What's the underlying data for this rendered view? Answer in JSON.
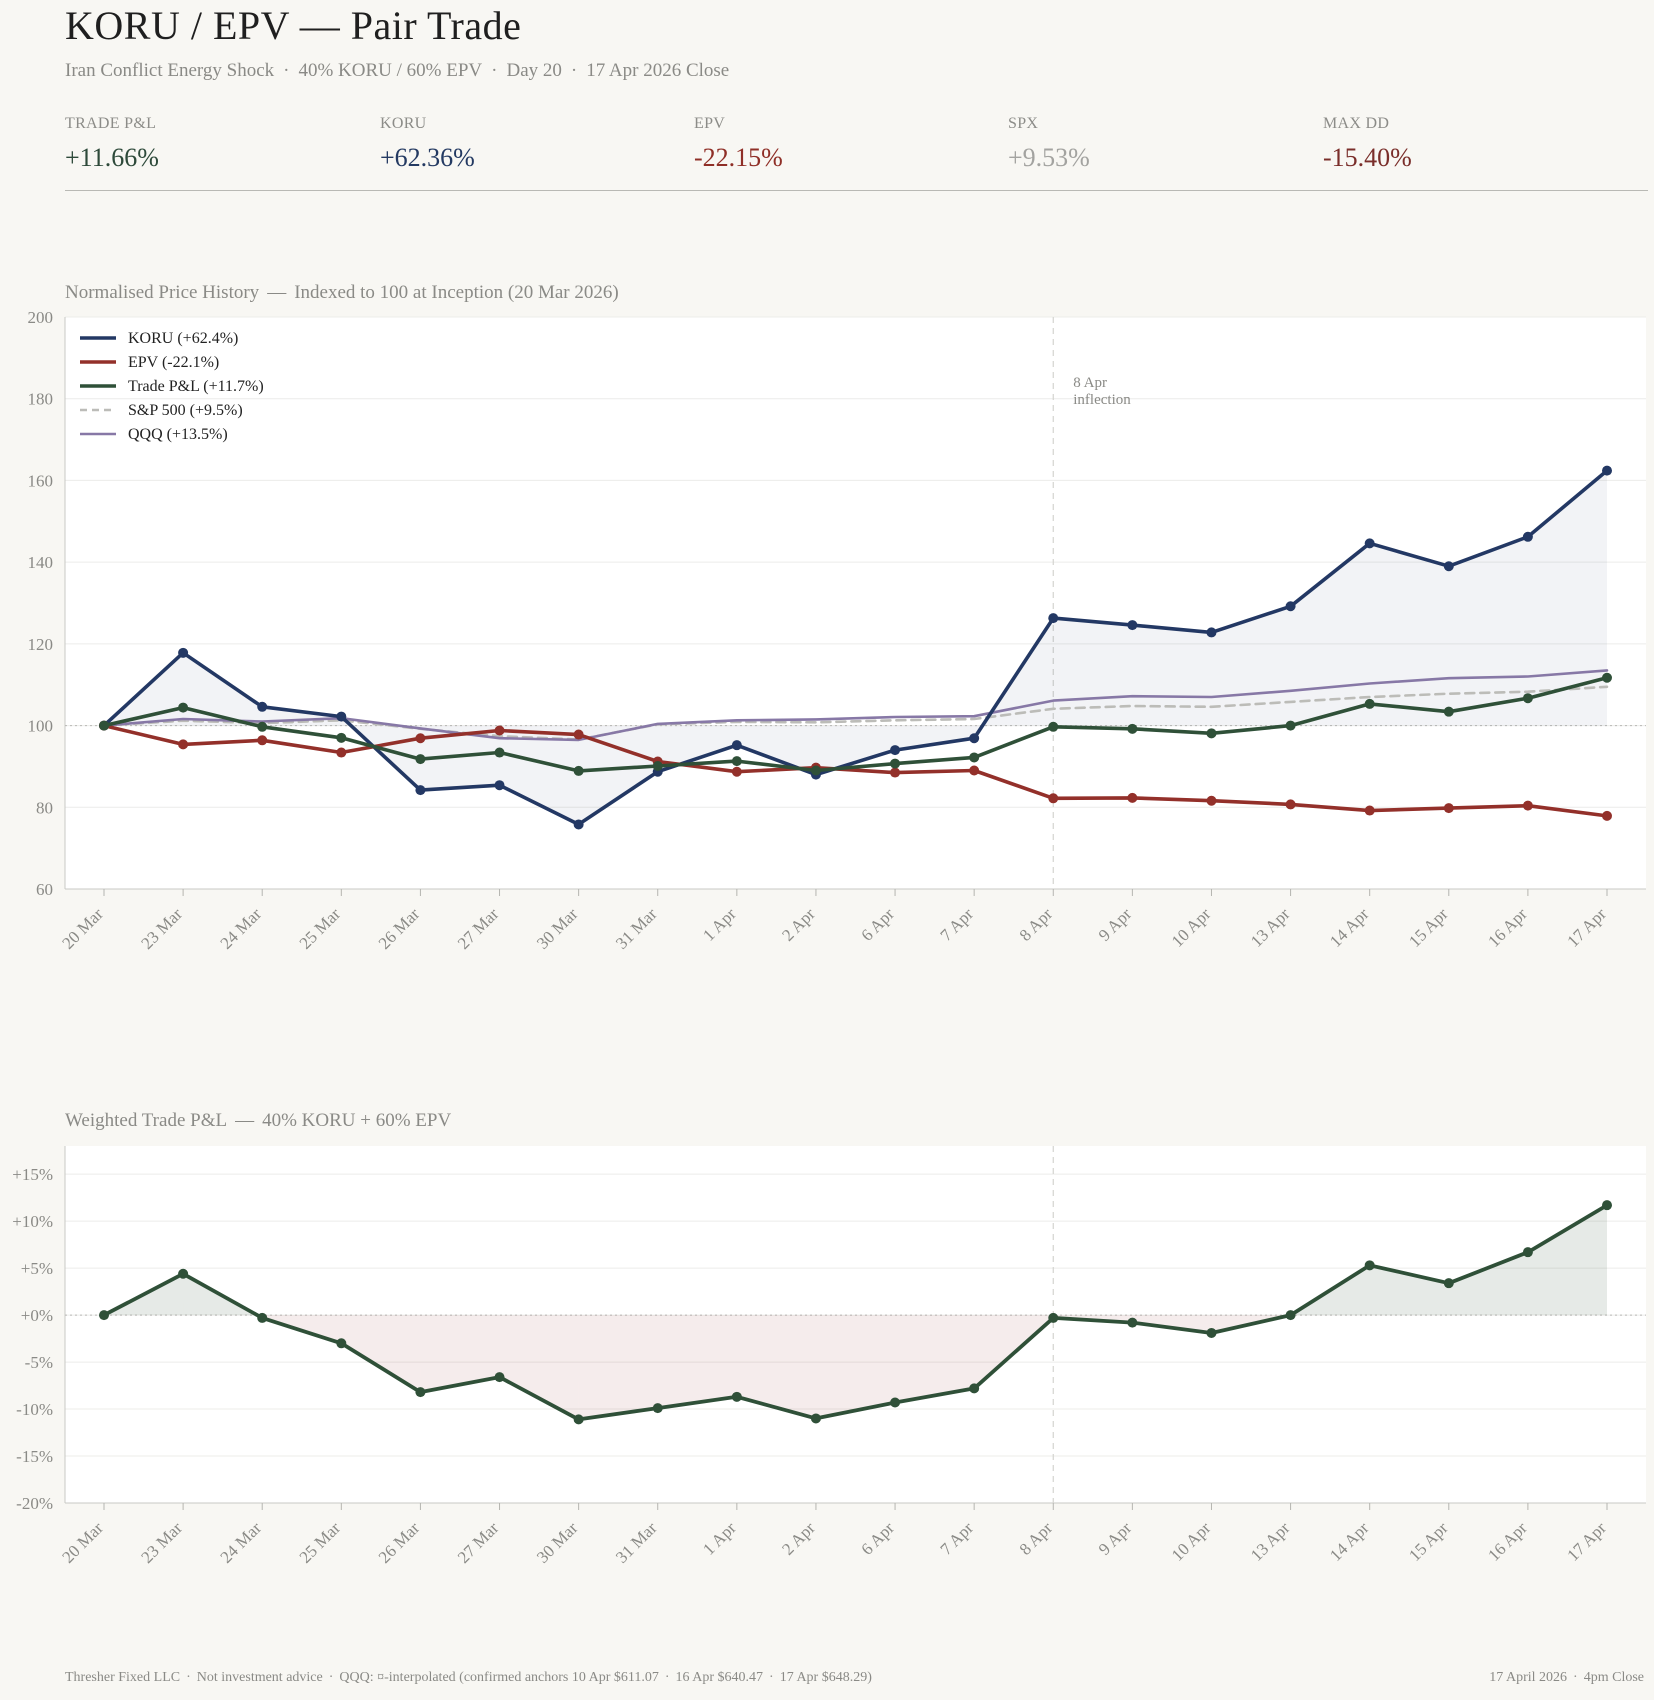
{
  "header": {
    "title": "KORU / EPV  —  Pair Trade",
    "subtitle_parts": [
      "Iran Conflict Energy Shock",
      "40% KORU / 60% EPV",
      "Day 20",
      "17 Apr 2026 Close"
    ]
  },
  "kpis": [
    {
      "label": "TRADE P&L",
      "value": "+11.66%",
      "color": "#2e4a3a"
    },
    {
      "label": "KORU",
      "value": "+62.36%",
      "color": "#243a62"
    },
    {
      "label": "EPV",
      "value": "-22.15%",
      "color": "#8f2f27"
    },
    {
      "label": "SPX",
      "value": "+9.53%",
      "color": "#a3a3a0"
    },
    {
      "label": "MAX DD",
      "value": "-15.40%",
      "color": "#7a2e2a"
    }
  ],
  "colors": {
    "koru": "#233864",
    "epv": "#93302a",
    "trade": "#2f5038",
    "spx": "#bcbcb8",
    "qqq": "#8778a6",
    "grid": "#ececea",
    "axis_text": "#8a8a86"
  },
  "chart_data": [
    {
      "type": "line",
      "title": "Normalised Price History",
      "subtitle": "Indexed to 100 at Inception (20 Mar 2026)",
      "categories": [
        "20 Mar",
        "23 Mar",
        "24 Mar",
        "25 Mar",
        "26 Mar",
        "27 Mar",
        "30 Mar",
        "31 Mar",
        "1 Apr",
        "2 Apr",
        "6 Apr",
        "7 Apr",
        "8 Apr",
        "9 Apr",
        "10 Apr",
        "13 Apr",
        "14 Apr",
        "15 Apr",
        "16 Apr",
        "17 Apr"
      ],
      "ylim": [
        60,
        200
      ],
      "yticks": [
        60,
        80,
        100,
        120,
        140,
        160,
        180,
        200
      ],
      "baseline": 100,
      "series": [
        {
          "name": "KORU",
          "legend": "KORU  (+62.4%)",
          "color_key": "koru",
          "style": "solid",
          "markers": true,
          "values": [
            100,
            117.8,
            104.6,
            102.2,
            84.2,
            85.4,
            75.8,
            88.7,
            95.2,
            88.0,
            94.0,
            96.9,
            126.3,
            124.6,
            122.8,
            129.2,
            144.6,
            139.0,
            146.2,
            162.4
          ]
        },
        {
          "name": "EPV",
          "legend": "EPV  (-22.1%)",
          "color_key": "epv",
          "style": "solid",
          "markers": true,
          "values": [
            100,
            95.4,
            96.4,
            93.4,
            96.9,
            98.8,
            97.8,
            91.2,
            88.7,
            89.7,
            88.5,
            89.0,
            82.2,
            82.3,
            81.6,
            80.7,
            79.2,
            79.8,
            80.4,
            77.9
          ]
        },
        {
          "name": "Trade P&L",
          "legend": "Trade P&L  (+11.7%)",
          "color_key": "trade",
          "style": "solid",
          "markers": true,
          "values": [
            100,
            104.4,
            99.7,
            97.0,
            91.8,
            93.4,
            88.9,
            90.1,
            91.3,
            89.0,
            90.7,
            92.2,
            99.7,
            99.2,
            98.1,
            100.0,
            105.3,
            103.4,
            106.7,
            111.7
          ]
        },
        {
          "name": "S&P 500",
          "legend": "S&P 500  (+9.5%)",
          "color_key": "spx",
          "style": "dashed",
          "markers": false,
          "values": [
            100,
            101.2,
            100.6,
            101.3,
            99.2,
            97.4,
            96.6,
            100.3,
            100.9,
            100.8,
            101.3,
            101.6,
            104.1,
            104.8,
            104.6,
            105.8,
            107.0,
            107.8,
            108.3,
            109.5
          ]
        },
        {
          "name": "QQQ",
          "legend": "QQQ  (+13.5%)",
          "color_key": "qqq",
          "style": "solid",
          "markers": false,
          "values": [
            100,
            101.6,
            101.0,
            101.8,
            99.3,
            96.9,
            96.5,
            100.4,
            101.3,
            101.5,
            102.1,
            102.3,
            106.1,
            107.2,
            107.0,
            108.5,
            110.3,
            111.6,
            112.0,
            113.5
          ]
        }
      ],
      "annotation": {
        "category": "8 Apr",
        "lines": [
          "8 Apr",
          "inflection"
        ]
      }
    },
    {
      "type": "line",
      "title": "Weighted Trade P&L",
      "subtitle": "40% KORU  +  60% EPV",
      "categories": [
        "20 Mar",
        "23 Mar",
        "24 Mar",
        "25 Mar",
        "26 Mar",
        "27 Mar",
        "30 Mar",
        "31 Mar",
        "1 Apr",
        "2 Apr",
        "6 Apr",
        "7 Apr",
        "8 Apr",
        "9 Apr",
        "10 Apr",
        "13 Apr",
        "14 Apr",
        "15 Apr",
        "16 Apr",
        "17 Apr"
      ],
      "ylim": [
        -20,
        18
      ],
      "yticks": [
        -20,
        -15,
        -10,
        -5,
        0,
        5,
        10,
        15
      ],
      "ytick_labels": [
        "-20%",
        "-15%",
        "-10%",
        "-5%",
        "+0%",
        "+5%",
        "+10%",
        "+15%"
      ],
      "baseline": 0,
      "series": [
        {
          "name": "Trade P&L",
          "color_key": "trade",
          "values": [
            0,
            4.4,
            -0.3,
            -3.0,
            -8.2,
            -6.6,
            -11.1,
            -9.9,
            -8.7,
            -11.0,
            -9.3,
            -7.8,
            -0.3,
            -0.8,
            -1.9,
            0.0,
            5.3,
            3.4,
            6.7,
            11.7
          ]
        }
      ],
      "vline_category": "8 Apr"
    }
  ],
  "footer": {
    "left_parts": [
      "Thresher Fixed LLC",
      "Not investment advice",
      "QQQ: ¤-interpolated (confirmed anchors 10 Apr $611.07",
      "16 Apr $640.47",
      "17 Apr $648.29)"
    ],
    "right_parts": [
      "17 April 2026",
      "4pm Close"
    ]
  }
}
